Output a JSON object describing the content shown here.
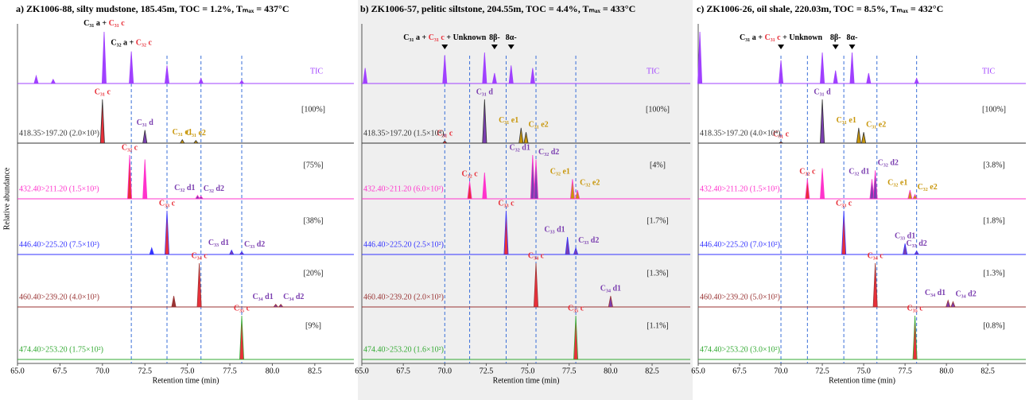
{
  "chart_data": [
    {
      "type": "line",
      "title": "a) ZK1006-88, silty mudstone, 185.45m, TOC = 1.2%, Tₘₐₓ = 437°C",
      "x_label": "Retention time (min)",
      "y_label": "Relative abundance",
      "xlim": [
        65,
        84.8
      ],
      "xticks": [
        {
          "value": 65,
          "label": "65.0"
        },
        67.5,
        {
          "value": 70,
          "label": "70.0"
        },
        72.5,
        {
          "value": 75,
          "label": "75.0"
        },
        77.5,
        {
          "value": 80,
          "label": "80.0"
        },
        82.5
      ],
      "background": "#ffffff",
      "label_arrows": false,
      "guides": [
        71.7,
        73.8,
        75.8,
        78.2
      ],
      "tic": {
        "name": "TIC",
        "color": "#a040ff",
        "x": [
          66.1,
          67.1,
          70.1,
          71.7,
          73.8,
          75.8,
          78.2
        ],
        "values": [
          15,
          8,
          100,
          62,
          35,
          10,
          6
        ],
        "labels": [
          null,
          null,
          [
            "C₃₁ a + ",
            "C₃₁ c"
          ],
          [
            "C₃₂ a + ",
            "C₃₂ c"
          ],
          null,
          null,
          null
        ]
      },
      "traces": [
        {
          "name": "418.35>197.20 (2.0×10³)",
          "percent": "[100%]",
          "color": "#333333",
          "x": [
            70.0,
            72.5,
            74.7,
            75.5
          ],
          "values": [
            100,
            30,
            8,
            6
          ],
          "labels": [
            "C₃₁ c",
            "C₃₁ d",
            "C₃₁ e1",
            "C₃₁ e2"
          ],
          "colors": [
            "#e8303a",
            "#7b3fb0",
            "#c8960a",
            "#c8960a"
          ]
        },
        {
          "name": "432.40>211.20 (1.5×10³)",
          "percent": "[75%]",
          "color": "#ff33cc",
          "x": [
            71.6,
            72.5,
            75.6,
            75.8
          ],
          "values": [
            100,
            90,
            8,
            6
          ],
          "labels": [
            "C₃₂ c",
            null,
            "C₃₂ d1",
            "C₃₂ d2"
          ],
          "colors": [
            "#e8303a",
            "#ff33cc",
            "#7b3fb0",
            "#7b3fb0"
          ]
        },
        {
          "name": "446.40>225.20 (7.5×10²)",
          "percent": "[38%]",
          "color": "#3333ff",
          "x": [
            72.9,
            73.8,
            77.6,
            78.2
          ],
          "values": [
            15,
            100,
            10,
            6
          ],
          "labels": [
            null,
            "C₃₃ c",
            "C₃₃ d1",
            "C₃₃ d2"
          ],
          "colors": [
            "#3333ff",
            "#e8303a",
            "#7b3fb0",
            "#7b3fb0"
          ]
        },
        {
          "name": "460.40>239.20 (4.0×10²)",
          "percent": "[20%]",
          "color": "#993333",
          "x": [
            74.2,
            75.7,
            80.2,
            80.5
          ],
          "values": [
            25,
            100,
            6,
            6
          ],
          "labels": [
            null,
            "C₃₄ c",
            "C₃₄ d1",
            "C₃₄ d2"
          ],
          "colors": [
            "#993333",
            "#e8303a",
            "#7b3fb0",
            "#7b3fb0"
          ]
        },
        {
          "name": "474.40>253.20 (1.75×10²)",
          "percent": "[9%]",
          "color": "#33aa33",
          "x": [
            78.2
          ],
          "values": [
            100
          ],
          "labels": [
            "C₃₅ c"
          ],
          "colors": [
            "#e8303a"
          ]
        }
      ]
    },
    {
      "type": "line",
      "title": "b) ZK1006-57, pelitic siltstone, 204.55m, TOC = 4.4%, Tₘₐₓ = 433°C",
      "x_label": "Retention time (min)",
      "xlim": [
        65,
        84.8
      ],
      "xticks": [
        {
          "value": 65,
          "label": "65.0"
        },
        67.5,
        {
          "value": 70,
          "label": "70.0"
        },
        72.5,
        {
          "value": 75,
          "label": "75.0"
        },
        77.5,
        {
          "value": 80,
          "label": "80.0"
        },
        82.5
      ],
      "background": "#efefef",
      "label_arrows": true,
      "guides": [
        70.0,
        71.5,
        73.7,
        75.5,
        77.9
      ],
      "tic": {
        "name": "TIC",
        "color": "#a040ff",
        "x": [
          65.2,
          70.0,
          72.4,
          73.0,
          74.0,
          75.3
        ],
        "values": [
          30,
          55,
          60,
          20,
          35,
          30
        ],
        "labels": [
          null,
          [
            "C₃₁ a + ",
            "C₃₁ c",
            " + Unknown"
          ],
          null,
          [
            "8β-"
          ],
          [
            "8α-"
          ],
          null
        ]
      },
      "traces": [
        {
          "name": "418.35>197.20 (1.5×10⁴)",
          "percent": "[100%]",
          "color": "#333333",
          "x": [
            70.0,
            72.4,
            74.6,
            74.9
          ],
          "values": [
            5,
            100,
            35,
            25
          ],
          "labels": [
            "C₃₁ c",
            "C₃₁ d",
            "C₃₁ e1",
            "C₃₁ e2"
          ],
          "colors": [
            "#e8303a",
            "#7b3fb0",
            "#c8960a",
            "#c8960a"
          ]
        },
        {
          "name": "432.40>211.20 (6.0×10²)",
          "percent": "[4%]",
          "color": "#ff33cc",
          "x": [
            71.5,
            72.4,
            75.3,
            75.5,
            77.7,
            78.0
          ],
          "values": [
            40,
            60,
            100,
            90,
            45,
            20
          ],
          "labels": [
            "C₃₂ c",
            null,
            "C₃₂ d1",
            "C₃₂ d2",
            "C₃₂ e1",
            "C₃₂ e2"
          ],
          "colors": [
            "#e8303a",
            "#ff33cc",
            "#7b3fb0",
            "#7b3fb0",
            "#c8960a",
            "#c8960a"
          ]
        },
        {
          "name": "446.40>225.20 (2.5×10²)",
          "percent": "[1.7%]",
          "color": "#3333ff",
          "x": [
            73.7,
            77.4,
            77.9
          ],
          "values": [
            100,
            40,
            15
          ],
          "labels": [
            "C₃₃ c",
            "C₃₃ d1",
            "C₃₃ d2"
          ],
          "colors": [
            "#e8303a",
            "#7b3fb0",
            "#7b3fb0"
          ]
        },
        {
          "name": "460.40>239.20 (2.0×10²)",
          "percent": "[1.3%]",
          "color": "#993333",
          "x": [
            75.5,
            80.0
          ],
          "values": [
            100,
            25
          ],
          "labels": [
            "C₃₄ c",
            "C₃₄ d1"
          ],
          "colors": [
            "#e8303a",
            "#7b3fb0"
          ]
        },
        {
          "name": "474.40>253.20 (1.6×10²)",
          "percent": "[1.1%]",
          "color": "#33aa33",
          "x": [
            77.9
          ],
          "values": [
            100
          ],
          "labels": [
            "C₃₅ c"
          ],
          "colors": [
            "#e8303a"
          ]
        }
      ]
    },
    {
      "type": "line",
      "title": "c) ZK1006-26, oil shale, 220.03m, TOC = 8.5%, Tₘₐₓ = 432°C",
      "x_label": "Retention time (min)",
      "xlim": [
        65,
        84.8
      ],
      "xticks": [
        {
          "value": 65,
          "label": "65.0"
        },
        67.5,
        {
          "value": 70,
          "label": "70.0"
        },
        72.5,
        {
          "value": 75,
          "label": "75.0"
        },
        77.5,
        {
          "value": 80,
          "label": "80.0"
        },
        82.5
      ],
      "background": "#ffffff",
      "label_arrows": true,
      "guides": [
        70.0,
        71.6,
        73.8,
        75.8,
        78.2
      ],
      "tic": {
        "name": "TIC",
        "color": "#a040ff",
        "x": [
          65.1,
          70.0,
          72.5,
          73.3,
          74.3,
          75.3,
          78.2
        ],
        "values": [
          100,
          45,
          60,
          25,
          60,
          20,
          10
        ],
        "labels": [
          null,
          [
            "C₃₁ a + ",
            "C₃₁ c",
            " + Unknown"
          ],
          null,
          [
            "8β-"
          ],
          [
            "8α-"
          ],
          null,
          null
        ]
      },
      "traces": [
        {
          "name": "418.35>197.20 (4.0×10⁴)",
          "percent": "[100%]",
          "color": "#333333",
          "x": [
            70.0,
            72.5,
            74.7,
            75.0
          ],
          "values": [
            3,
            100,
            35,
            25
          ],
          "labels": [
            "C₃₁ c",
            "C₃₁ d",
            "C₃₁ e1",
            "C₃₁ e2"
          ],
          "colors": [
            "#e8303a",
            "#7b3fb0",
            "#c8960a",
            "#c8960a"
          ]
        },
        {
          "name": "432.40>211.20 (1.5×10³)",
          "percent": "[3.8%]",
          "color": "#ff33cc",
          "x": [
            71.6,
            72.5,
            75.5,
            75.7,
            77.8,
            78.1
          ],
          "values": [
            45,
            70,
            45,
            65,
            20,
            10
          ],
          "labels": [
            "C₃₂ c",
            null,
            "C₃₂ d1",
            "C₃₂ d2",
            "C₃₂ e1",
            "C₃₂ e2"
          ],
          "colors": [
            "#e8303a",
            "#ff33cc",
            "#7b3fb0",
            "#7b3fb0",
            "#c8960a",
            "#c8960a"
          ]
        },
        {
          "name": "446.40>225.20 (7.0×10²)",
          "percent": "[1.8%]",
          "color": "#3333ff",
          "x": [
            73.8,
            77.5,
            78.2
          ],
          "values": [
            100,
            25,
            8
          ],
          "labels": [
            "C₃₃ c",
            "C₃₃ d1",
            "C₃₃ d2"
          ],
          "colors": [
            "#e8303a",
            "#7b3fb0",
            "#7b3fb0"
          ]
        },
        {
          "name": "460.40>239.20 (5.0×10²)",
          "percent": "[1.3%]",
          "color": "#993333",
          "x": [
            75.7,
            80.1,
            80.4
          ],
          "values": [
            100,
            15,
            12
          ],
          "labels": [
            "C₃₄ c",
            "C₃₄ d1",
            "C₃₄ d2"
          ],
          "colors": [
            "#e8303a",
            "#7b3fb0",
            "#7b3fb0"
          ]
        },
        {
          "name": "474.40>253.20 (3.0×10²)",
          "percent": "[0.8%]",
          "color": "#33aa33",
          "x": [
            78.1
          ],
          "values": [
            100
          ],
          "labels": [
            "C₃₅ c"
          ],
          "colors": [
            "#e8303a"
          ]
        }
      ]
    }
  ]
}
